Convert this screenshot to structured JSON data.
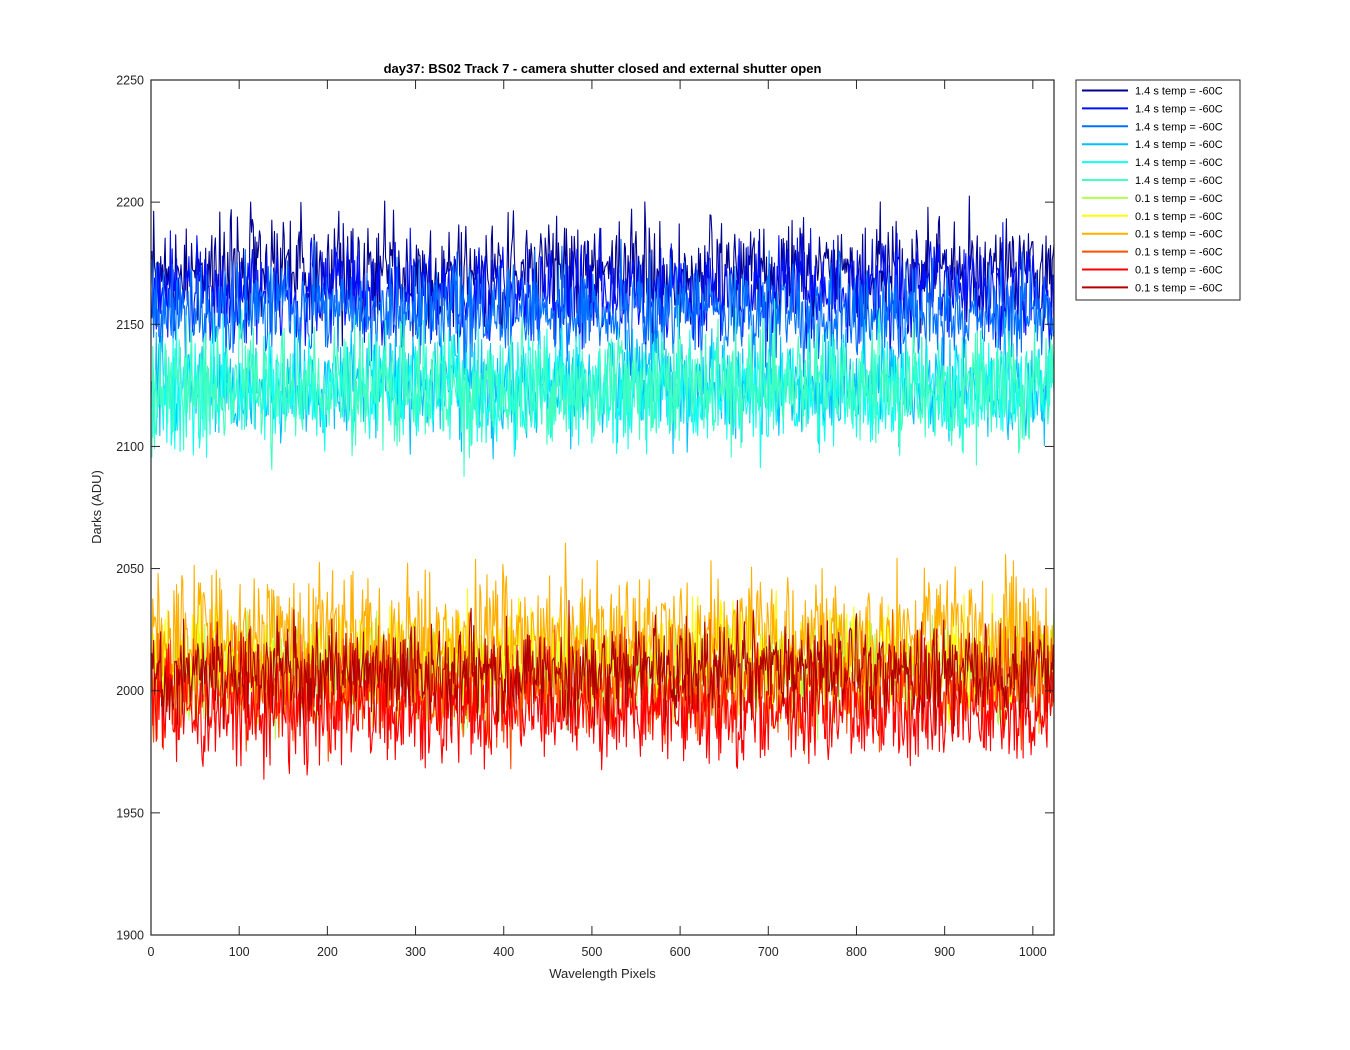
{
  "chart_data": {
    "type": "line",
    "title": "day37: BS02  Track 7 - camera shutter closed and external shutter open",
    "xlabel": "Wavelength Pixels",
    "ylabel": "Darks (ADU)",
    "xlim": [
      0,
      1024
    ],
    "ylim": [
      1900,
      2250
    ],
    "xticks": [
      0,
      100,
      200,
      300,
      400,
      500,
      600,
      700,
      800,
      900,
      1000
    ],
    "yticks": [
      1900,
      1950,
      2000,
      2050,
      2100,
      2150,
      2200,
      2250
    ],
    "x_count": 1024,
    "grid": false,
    "legend_position": "outside-top-right",
    "series": [
      {
        "name": "1.4 s temp = -60C",
        "color": "#00008F",
        "mean": 2172,
        "spread": 11
      },
      {
        "name": "1.4 s temp = -60C",
        "color": "#0010FF",
        "mean": 2163,
        "spread": 10
      },
      {
        "name": "1.4 s temp = -60C",
        "color": "#0070FF",
        "mean": 2155,
        "spread": 10
      },
      {
        "name": "1.4 s temp = -60C",
        "color": "#00BFFF",
        "mean": 2125,
        "spread": 11
      },
      {
        "name": "1.4 s temp = -60C",
        "color": "#10FFEF",
        "mean": 2122,
        "spread": 11
      },
      {
        "name": "1.4 s temp = -60C",
        "color": "#40FFBF",
        "mean": 2125,
        "spread": 12
      },
      {
        "name": "0.1 s temp = -60C",
        "color": "#AFFF50",
        "mean": 2008,
        "spread": 11
      },
      {
        "name": "0.1 s temp = -60C",
        "color": "#FFFF00",
        "mean": 2012,
        "spread": 12
      },
      {
        "name": "0.1 s temp = -60C",
        "color": "#FFAF00",
        "mean": 2022,
        "spread": 13
      },
      {
        "name": "0.1 s temp = -60C",
        "color": "#FF5000",
        "mean": 2002,
        "spread": 11
      },
      {
        "name": "0.1 s temp = -60C",
        "color": "#FF0000",
        "mean": 1992,
        "spread": 11
      },
      {
        "name": "0.1 s temp = -60C",
        "color": "#B00000",
        "mean": 2008,
        "spread": 10
      }
    ]
  }
}
